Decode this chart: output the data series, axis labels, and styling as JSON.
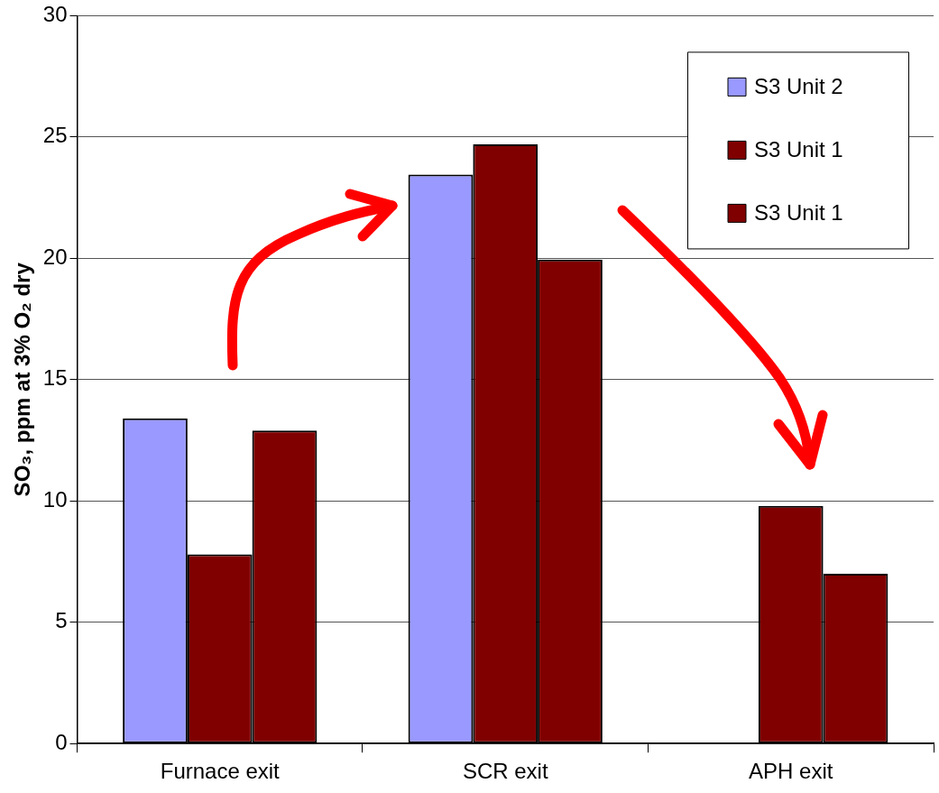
{
  "chart_data": {
    "type": "bar",
    "ylabel": "SO₃, ppm at 3% O₂ dry",
    "categories": [
      "Furnace exit",
      "SCR exit",
      "APH exit"
    ],
    "series": [
      {
        "name": "S3 Unit 2",
        "color": "#9999ff",
        "values": [
          13.4,
          23.45,
          null
        ]
      },
      {
        "name": "S3 Unit 1",
        "color": "#800000",
        "values": [
          7.8,
          24.7,
          9.8
        ]
      },
      {
        "name": "S3 Unit 1",
        "color": "#800000",
        "values": [
          12.9,
          19.95,
          7.0
        ]
      }
    ],
    "ylim": [
      0,
      30
    ],
    "yticks": [
      0,
      5,
      10,
      15,
      20,
      25,
      30
    ],
    "grid": "y",
    "legend": "top right"
  }
}
